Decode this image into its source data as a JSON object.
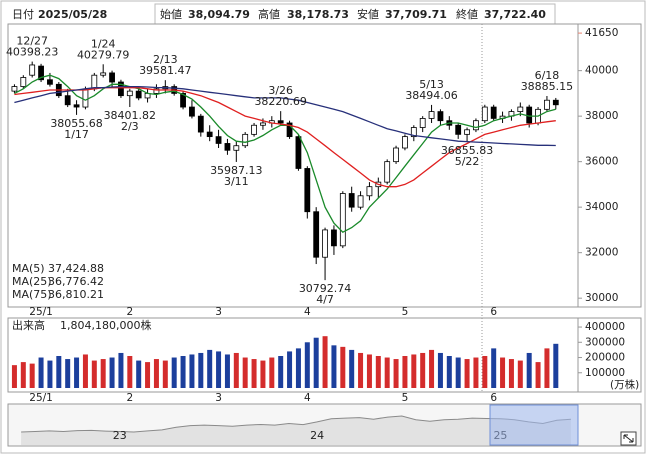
{
  "header": {
    "items": [
      {
        "label": "日付",
        "value": "2025/05/28",
        "color": "#000000"
      },
      {
        "label": "始値",
        "value": "38,094.79",
        "color": "#000000"
      },
      {
        "label": "高値",
        "value": "38,178.73",
        "color": "#e00000"
      },
      {
        "label": "安値",
        "value": "37,709.71",
        "color": "#1a9a1a"
      },
      {
        "label": "終値",
        "value": "37,722.40",
        "color": "#000000"
      }
    ]
  },
  "chart_data": [
    {
      "type": "candlestick",
      "categories": [
        null,
        null,
        null,
        "25/1",
        null,
        null,
        null,
        null,
        null,
        null,
        null,
        null,
        null,
        "2",
        null,
        null,
        null,
        null,
        null,
        null,
        null,
        null,
        null,
        "3",
        null,
        null,
        null,
        null,
        null,
        null,
        null,
        null,
        null,
        "4",
        null,
        null,
        null,
        null,
        null,
        null,
        null,
        null,
        null,
        null,
        "5",
        null,
        null,
        null,
        null,
        null,
        null,
        null,
        null,
        null,
        "6",
        null,
        null,
        null,
        null,
        null,
        null,
        null
      ],
      "open": [
        39100,
        39300,
        39800,
        40200,
        39600,
        39400,
        38900,
        38500,
        38400,
        39200,
        39800,
        39900,
        39500,
        38900,
        39100,
        38800,
        39000,
        39200,
        39300,
        39000,
        38400,
        38000,
        37300,
        37100,
        36800,
        36500,
        36700,
        37200,
        37600,
        37700,
        37800,
        37700,
        37100,
        35700,
        33800,
        31800,
        33000,
        32300,
        34600,
        34000,
        34500,
        34900,
        35100,
        36000,
        36600,
        37100,
        37500,
        37900,
        38200,
        37800,
        37600,
        37200,
        37400,
        37800,
        38400,
        37900,
        38000,
        38200,
        38400,
        37700,
        38300,
        38700
      ],
      "high": [
        39400,
        39800,
        40398.23,
        40300,
        39900,
        39500,
        39200,
        38700,
        39300,
        39900,
        40279.79,
        40000,
        39600,
        39200,
        39300,
        39200,
        39400,
        39581.47,
        39400,
        39100,
        38700,
        38100,
        37600,
        37400,
        37000,
        36900,
        37300,
        37700,
        37900,
        38000,
        38220.69,
        37800,
        37200,
        35800,
        34000,
        33100,
        33200,
        34700,
        34900,
        34700,
        35100,
        35300,
        36100,
        36700,
        37200,
        37600,
        38000,
        38494.06,
        38300,
        38000,
        37700,
        37500,
        37900,
        38500,
        38500,
        38200,
        38300,
        38600,
        38500,
        38400,
        38885.15,
        38800
      ],
      "low": [
        39000,
        39200,
        39700,
        39500,
        39300,
        38800,
        38400,
        38055.68,
        38300,
        39100,
        39700,
        39300,
        38800,
        38401.82,
        38700,
        38600,
        38800,
        39000,
        38900,
        38300,
        37900,
        37100,
        36900,
        36600,
        36300,
        35987.13,
        36600,
        37100,
        37400,
        37500,
        37600,
        37000,
        35600,
        33500,
        31500,
        30792.74,
        31900,
        32200,
        33800,
        33900,
        34300,
        34400,
        35000,
        35900,
        36500,
        36900,
        37300,
        37700,
        37600,
        37400,
        37000,
        36855.83,
        37300,
        37700,
        37800,
        37700,
        37800,
        38000,
        37500,
        37600,
        38200,
        38300
      ],
      "close": [
        39300,
        39700,
        40250,
        39600,
        39400,
        38900,
        38500,
        38400,
        39200,
        39800,
        39900,
        39500,
        38900,
        39100,
        38800,
        39000,
        39200,
        39300,
        39000,
        38400,
        38000,
        37300,
        37100,
        36800,
        36500,
        36700,
        37200,
        37600,
        37700,
        37800,
        37700,
        37100,
        35700,
        33800,
        31800,
        33000,
        32300,
        34600,
        34000,
        34500,
        34900,
        35100,
        36000,
        36600,
        37100,
        37500,
        37900,
        38200,
        37800,
        37600,
        37200,
        37400,
        37800,
        38400,
        37900,
        38000,
        38200,
        38400,
        37700,
        38300,
        38700,
        38500
      ],
      "up_color": "#ffffff",
      "down_color": "#000000",
      "ylim": [
        29700,
        42050
      ],
      "yticks": [
        30000,
        32000,
        34000,
        36000,
        38000,
        40000
      ],
      "grid": false,
      "price_marker": 41650,
      "price_marker_color": "#e8826e",
      "series": [
        {
          "name": "MA(5)",
          "color": "#1a8a2a",
          "legend_value": "37,424.88",
          "values": [
            39000,
            39200,
            39500,
            39700,
            39800,
            39650,
            39300,
            38900,
            38700,
            38900,
            39200,
            39400,
            39400,
            39300,
            39200,
            39000,
            38950,
            39050,
            39100,
            38950,
            38750,
            38400,
            38000,
            37550,
            37150,
            36900,
            36850,
            36950,
            37150,
            37400,
            37600,
            37600,
            37200,
            36400,
            35200,
            34000,
            33300,
            32900,
            33100,
            33400,
            34000,
            34400,
            34800,
            35300,
            35800,
            36300,
            36800,
            37300,
            37600,
            37700,
            37700,
            37600,
            37500,
            37600,
            37800,
            37900,
            38000,
            38100,
            38000,
            38000,
            38200,
            38300
          ]
        },
        {
          "name": "MA(25)",
          "color": "#e02020",
          "legend_value": "36,776.42",
          "values": [
            38950,
            39000,
            39050,
            39100,
            39150,
            39150,
            39150,
            39150,
            39150,
            39200,
            39250,
            39250,
            39250,
            39250,
            39250,
            39200,
            39150,
            39150,
            39150,
            39100,
            39000,
            38900,
            38750,
            38600,
            38400,
            38200,
            38000,
            37900,
            37800,
            37700,
            37650,
            37600,
            37500,
            37300,
            37000,
            36700,
            36400,
            36100,
            35800,
            35500,
            35200,
            35000,
            34900,
            34900,
            35000,
            35200,
            35500,
            35800,
            36100,
            36400,
            36600,
            36800,
            37000,
            37200,
            37300,
            37400,
            37500,
            37600,
            37650,
            37700,
            37750,
            37800
          ]
        },
        {
          "name": "MA(75)",
          "color": "#27307a",
          "legend_value": "36,810.21",
          "values": [
            38600,
            38700,
            38800,
            38900,
            39000,
            39050,
            39100,
            39150,
            39200,
            39250,
            39250,
            39280,
            39300,
            39300,
            39300,
            39280,
            39260,
            39250,
            39230,
            39200,
            39150,
            39100,
            39050,
            39000,
            38950,
            38900,
            38850,
            38800,
            38800,
            38800,
            38800,
            38750,
            38700,
            38600,
            38500,
            38400,
            38300,
            38200,
            38050,
            37900,
            37750,
            37600,
            37450,
            37350,
            37250,
            37150,
            37100,
            37050,
            37000,
            36950,
            36900,
            36880,
            36860,
            36840,
            36820,
            36800,
            36780,
            36760,
            36740,
            36720,
            36720,
            36710
          ]
        }
      ],
      "annotations": [
        {
          "date": "12/27",
          "price": 40398.23
        },
        {
          "date": "1/17",
          "price": 38055.68
        },
        {
          "date": "1/24",
          "price": 40279.79
        },
        {
          "date": "2/3",
          "price": 38401.82
        },
        {
          "date": "2/13",
          "price": 39581.47
        },
        {
          "date": "3/11",
          "price": 35987.13
        },
        {
          "date": "3/26",
          "price": 38220.69
        },
        {
          "date": "4/7",
          "price": 30792.74
        },
        {
          "date": "5/13",
          "price": 38494.06
        },
        {
          "date": "5/22",
          "price": 36855.83
        },
        {
          "date": "6/18",
          "price": 38885.15
        }
      ]
    },
    {
      "type": "bar",
      "title": "出来高",
      "subtitle": "1,804,180,000株",
      "unit": "(万株)",
      "categories": [
        null,
        null,
        null,
        "25/1",
        null,
        null,
        null,
        null,
        null,
        null,
        null,
        null,
        null,
        "2",
        null,
        null,
        null,
        null,
        null,
        null,
        null,
        null,
        null,
        "3",
        null,
        null,
        null,
        null,
        null,
        null,
        null,
        null,
        null,
        "4",
        null,
        null,
        null,
        null,
        null,
        null,
        null,
        null,
        null,
        null,
        "5",
        null,
        null,
        null,
        null,
        null,
        null,
        null,
        null,
        null,
        "6",
        null,
        null,
        null,
        null,
        null,
        null,
        null
      ],
      "values": [
        150000,
        170000,
        160000,
        200000,
        180000,
        210000,
        190000,
        200000,
        220000,
        180000,
        190000,
        200000,
        230000,
        210000,
        180000,
        170000,
        190000,
        180000,
        200000,
        210000,
        220000,
        230000,
        250000,
        240000,
        220000,
        230000,
        200000,
        190000,
        180000,
        200000,
        210000,
        240000,
        260000,
        300000,
        330000,
        340000,
        280000,
        270000,
        250000,
        230000,
        220000,
        210000,
        200000,
        190000,
        210000,
        220000,
        230000,
        250000,
        230000,
        210000,
        200000,
        190000,
        200000,
        210000,
        260000,
        200000,
        190000,
        180000,
        230000,
        170000,
        260000,
        290000
      ],
      "up_color": "#d42c2c",
      "down_color": "#1c3f9c",
      "ylim": [
        0,
        420000
      ],
      "yticks": [
        100000,
        200000,
        300000,
        400000
      ]
    },
    {
      "type": "area",
      "categories": [
        null,
        null,
        null,
        null,
        null,
        null,
        null,
        "23",
        null,
        null,
        null,
        null,
        null,
        null,
        null,
        null,
        null,
        null,
        null,
        null,
        null,
        "24",
        null,
        null,
        null,
        null,
        null,
        null,
        null,
        null,
        null,
        null,
        null,
        null,
        "25",
        null,
        null,
        null,
        null,
        null
      ],
      "values": [
        26500,
        27000,
        27500,
        27000,
        27800,
        28000,
        27300,
        27000,
        26500,
        27500,
        28500,
        31000,
        32500,
        33000,
        32500,
        31800,
        33000,
        33500,
        33000,
        34500,
        33400,
        36000,
        39000,
        39500,
        40000,
        38500,
        40500,
        41500,
        38000,
        36500,
        38000,
        38500,
        39500,
        39200,
        39000,
        38000,
        36000,
        34500,
        37500,
        38500
      ],
      "color": "#8a8a8a",
      "fill": "#e2e2e2"
    }
  ]
}
